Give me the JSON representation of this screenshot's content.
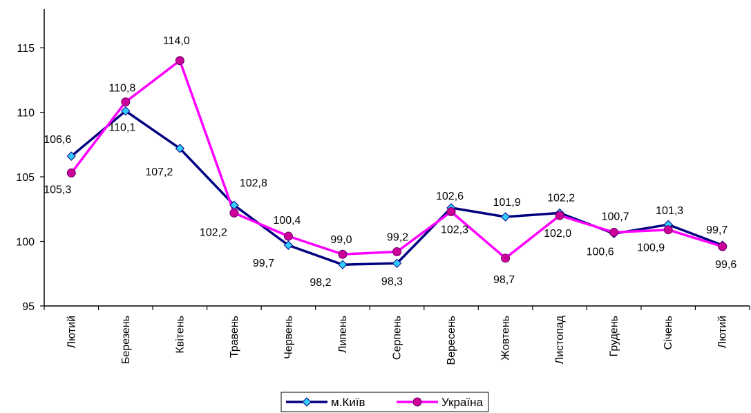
{
  "chart_data": {
    "type": "line",
    "categories": [
      "Лютий",
      "Березень",
      "Квітень",
      "Травень",
      "Червень",
      "Липень",
      "Серпень",
      "Вересень",
      "Жовтень",
      "Листопад",
      "Грудень",
      "Січень",
      "Лютий"
    ],
    "series": [
      {
        "name": "м.Київ",
        "color": "#000080",
        "marker_color": "#33CCFF",
        "marker": "diamond",
        "values": [
          106.6,
          110.1,
          107.2,
          102.8,
          99.7,
          98.2,
          98.3,
          102.6,
          101.9,
          102.2,
          100.6,
          101.3,
          99.7
        ],
        "labels": [
          "106,6",
          "110,1",
          "107,2",
          "102,8",
          "99,7",
          "98,2",
          "98,3",
          "102,6",
          "101,9",
          "102,2",
          "100,6",
          "101,3",
          "99,7"
        ]
      },
      {
        "name": "Україна",
        "color": "#FF00FF",
        "marker_color": "#CC0099",
        "marker": "circle",
        "values": [
          105.3,
          110.8,
          114.0,
          102.2,
          100.4,
          99.0,
          99.2,
          102.3,
          98.7,
          102.0,
          100.7,
          100.9,
          99.6
        ],
        "labels": [
          "105,3",
          "110,8",
          "114,0",
          "102,2",
          "100,4",
          "99,0",
          "99,2",
          "102,3",
          "98,7",
          "102,0",
          "100,7",
          "100,9",
          "99,6"
        ]
      }
    ],
    "y_ticks": [
      "95",
      "100",
      "105",
      "110",
      "115"
    ],
    "ylim": [
      95,
      118
    ],
    "grid": false,
    "legend_position": "bottom"
  }
}
